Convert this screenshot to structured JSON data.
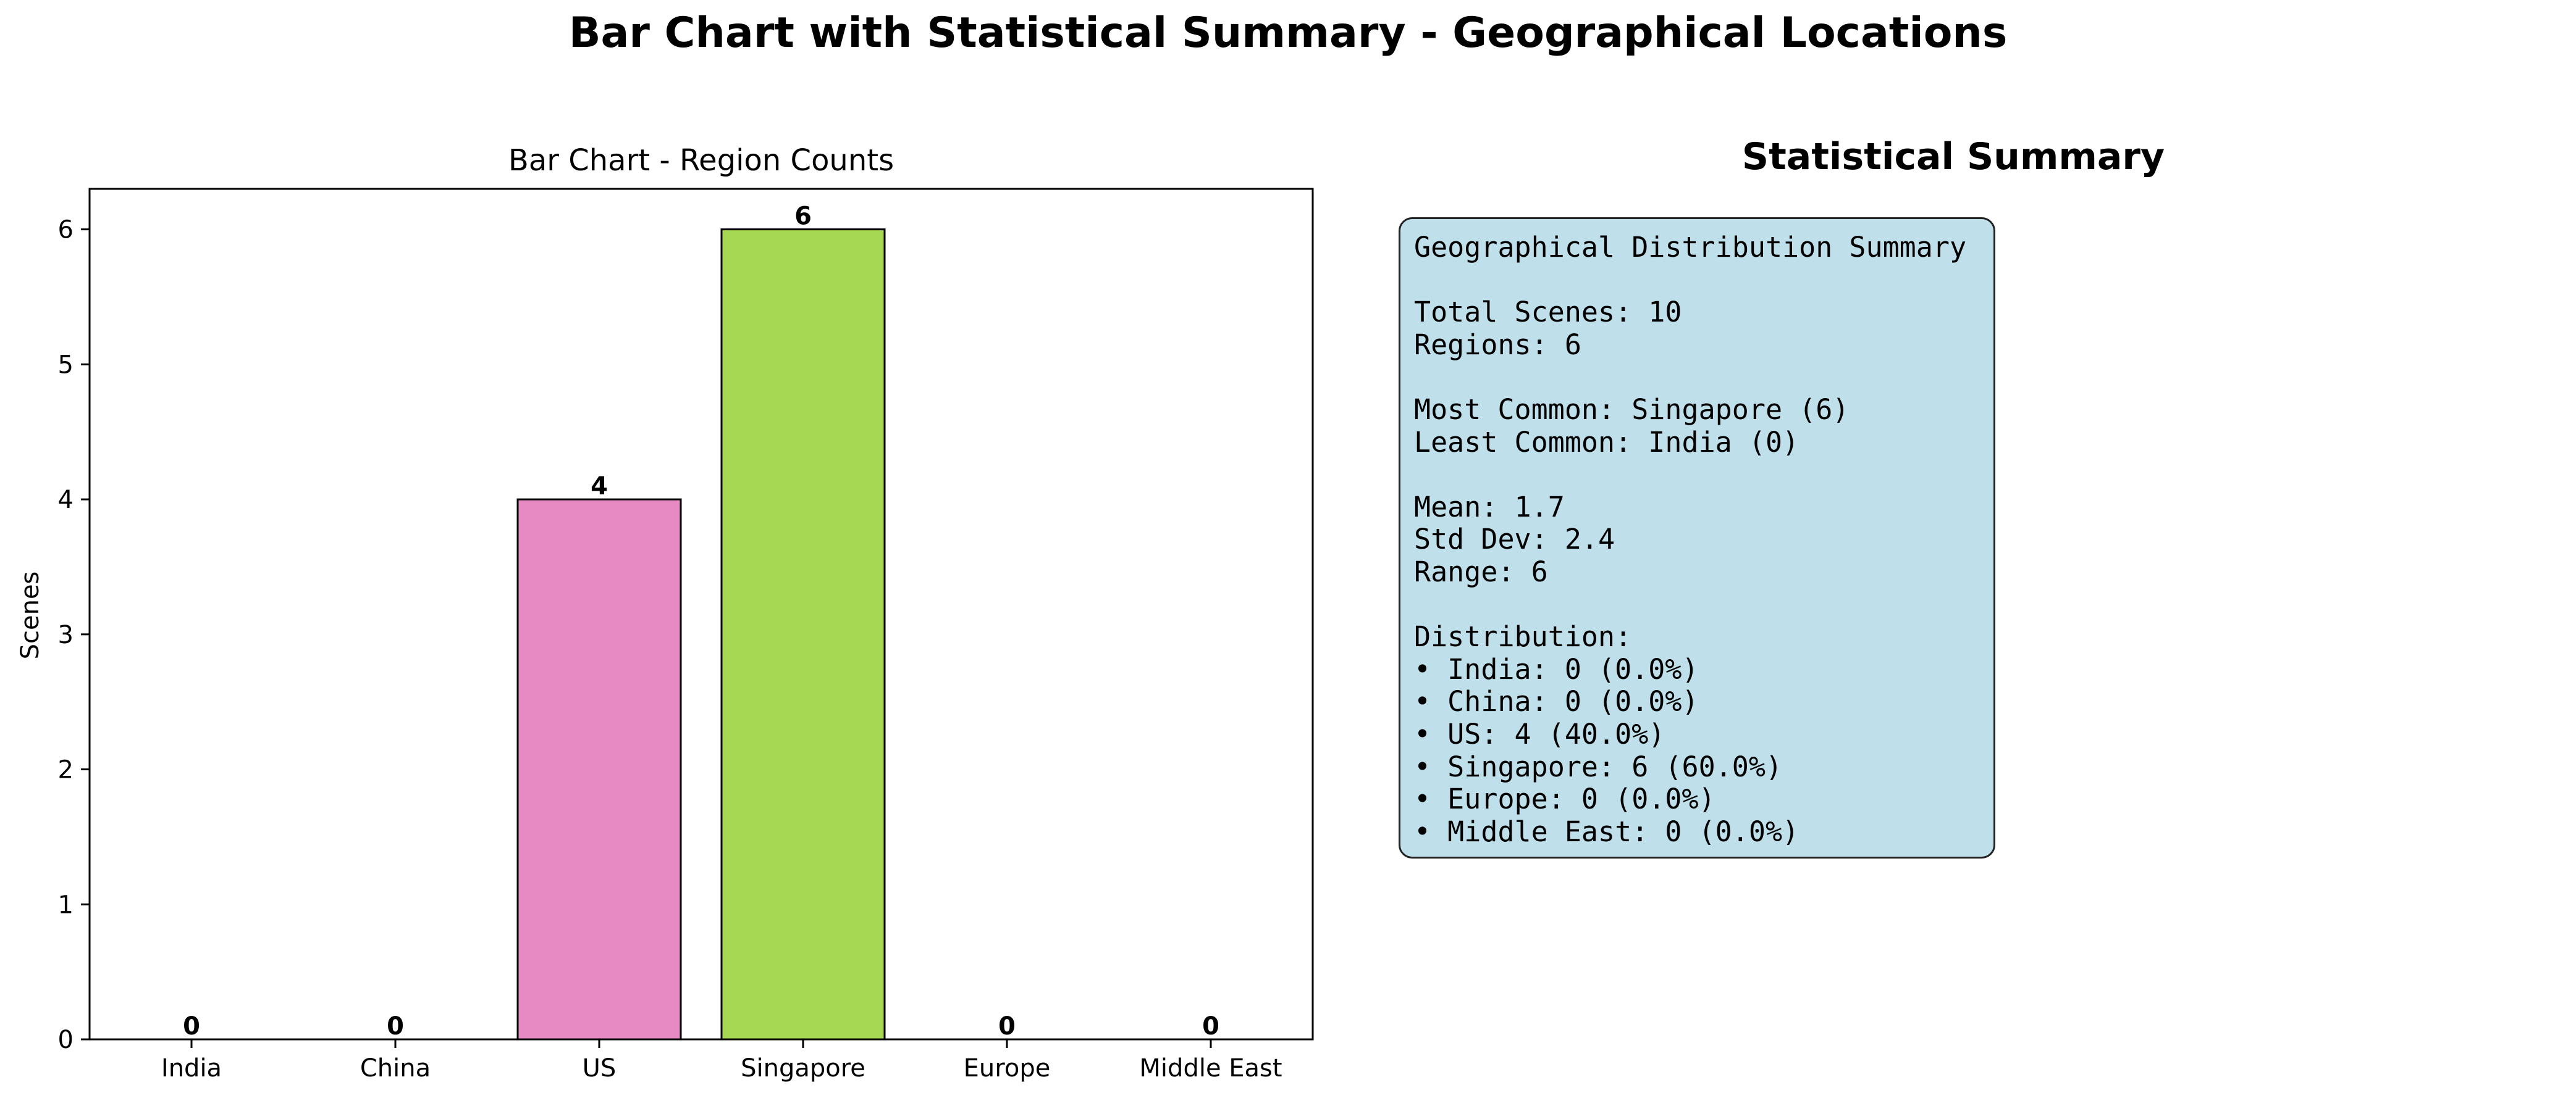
{
  "figure": {
    "title": "Bar Chart with Statistical Summary - Geographical Locations"
  },
  "chart_data": [
    {
      "type": "bar",
      "title": "Bar Chart - Region Counts",
      "xlabel": "",
      "ylabel": "Scenes",
      "categories": [
        "India",
        "China",
        "US",
        "Singapore",
        "Europe",
        "Middle East"
      ],
      "values": [
        0,
        0,
        4,
        6,
        0,
        0
      ],
      "data_labels": [
        "0",
        "0",
        "4",
        "6",
        "0",
        "0"
      ],
      "colors": [
        "#8dd3c7",
        "#ffffb3",
        "#e78ac3",
        "#a6d854",
        "#fdb462",
        "#b3de69"
      ],
      "ylim": [
        0,
        6.3
      ],
      "yticks": [
        0,
        1,
        2,
        3,
        4,
        5,
        6
      ],
      "grid": false,
      "legend": "none"
    }
  ],
  "summary": {
    "heading": "Statistical Summary",
    "lines": [
      "Geographical Distribution Summary",
      "",
      "Total Scenes: 10",
      "Regions: 6",
      "",
      "Most Common: Singapore (6)",
      "Least Common: India (0)",
      "",
      "Mean: 1.7",
      "Std Dev: 2.4",
      "Range: 6",
      "",
      "Distribution:",
      "• India: 0 (0.0%)",
      "• China: 0 (0.0%)",
      "• US: 4 (40.0%)",
      "• Singapore: 6 (60.0%)",
      "• Europe: 0 (0.0%)",
      "• Middle East: 0 (0.0%)"
    ],
    "box_color": "#bfdfea"
  }
}
